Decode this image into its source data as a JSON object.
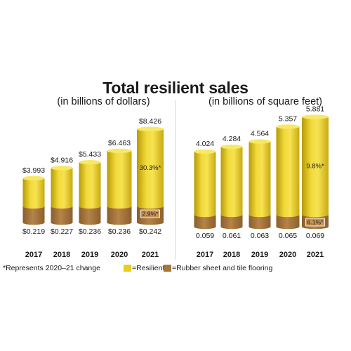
{
  "chart_title": "Total resilient sales",
  "footnote": "*Represents 2020–21 change",
  "colors": {
    "resilient": "#e9cc1f",
    "rubber": "#a8763a"
  },
  "legend": [
    {
      "label": "=Resilient",
      "color": "#e9cc1f"
    },
    {
      "label": "=Rubber sheet and tile flooring",
      "color": "#a8763a"
    }
  ],
  "chart_data": [
    {
      "type": "bar",
      "title": "",
      "subtitle": "(in billions of dollars)",
      "categories": [
        "2017",
        "2018",
        "2019",
        "2020",
        "2021"
      ],
      "series": [
        {
          "name": "Resilient",
          "values": [
            3.993,
            4.916,
            5.433,
            6.463,
            8.426
          ],
          "labels": [
            "$3.993",
            "$4.916",
            "$5.433",
            "$6.463",
            "$8.426"
          ]
        },
        {
          "name": "Rubber sheet and tile flooring",
          "values": [
            0.219,
            0.227,
            0.236,
            0.236,
            0.242
          ],
          "labels": [
            "$0.219",
            "$0.227",
            "$0.236",
            "$0.236",
            "$0.242"
          ]
        }
      ],
      "annotations": [
        {
          "category": "2021",
          "series": "Resilient",
          "text": "30.3%*"
        },
        {
          "category": "2021",
          "series": "Rubber sheet and tile flooring",
          "text": "2.9%*"
        }
      ]
    },
    {
      "type": "bar",
      "title": "",
      "subtitle": "(in billions of square feet)",
      "categories": [
        "2017",
        "2018",
        "2019",
        "2020",
        "2021"
      ],
      "series": [
        {
          "name": "Resilient",
          "values": [
            4.024,
            4.284,
            4.564,
            5.357,
            5.881
          ],
          "labels": [
            "4.024",
            "4.284",
            "4.564",
            "5.357",
            "5.881"
          ]
        },
        {
          "name": "Rubber sheet and tile flooring",
          "values": [
            0.059,
            0.061,
            0.063,
            0.065,
            0.069
          ],
          "labels": [
            "0.059",
            "0.061",
            "0.063",
            "0.065",
            "0.069"
          ]
        }
      ],
      "annotations": [
        {
          "category": "2021",
          "series": "Resilient",
          "text": "9.8%*"
        },
        {
          "category": "2021",
          "series": "Rubber sheet and tile flooring",
          "text": "6.1%*"
        }
      ]
    }
  ]
}
